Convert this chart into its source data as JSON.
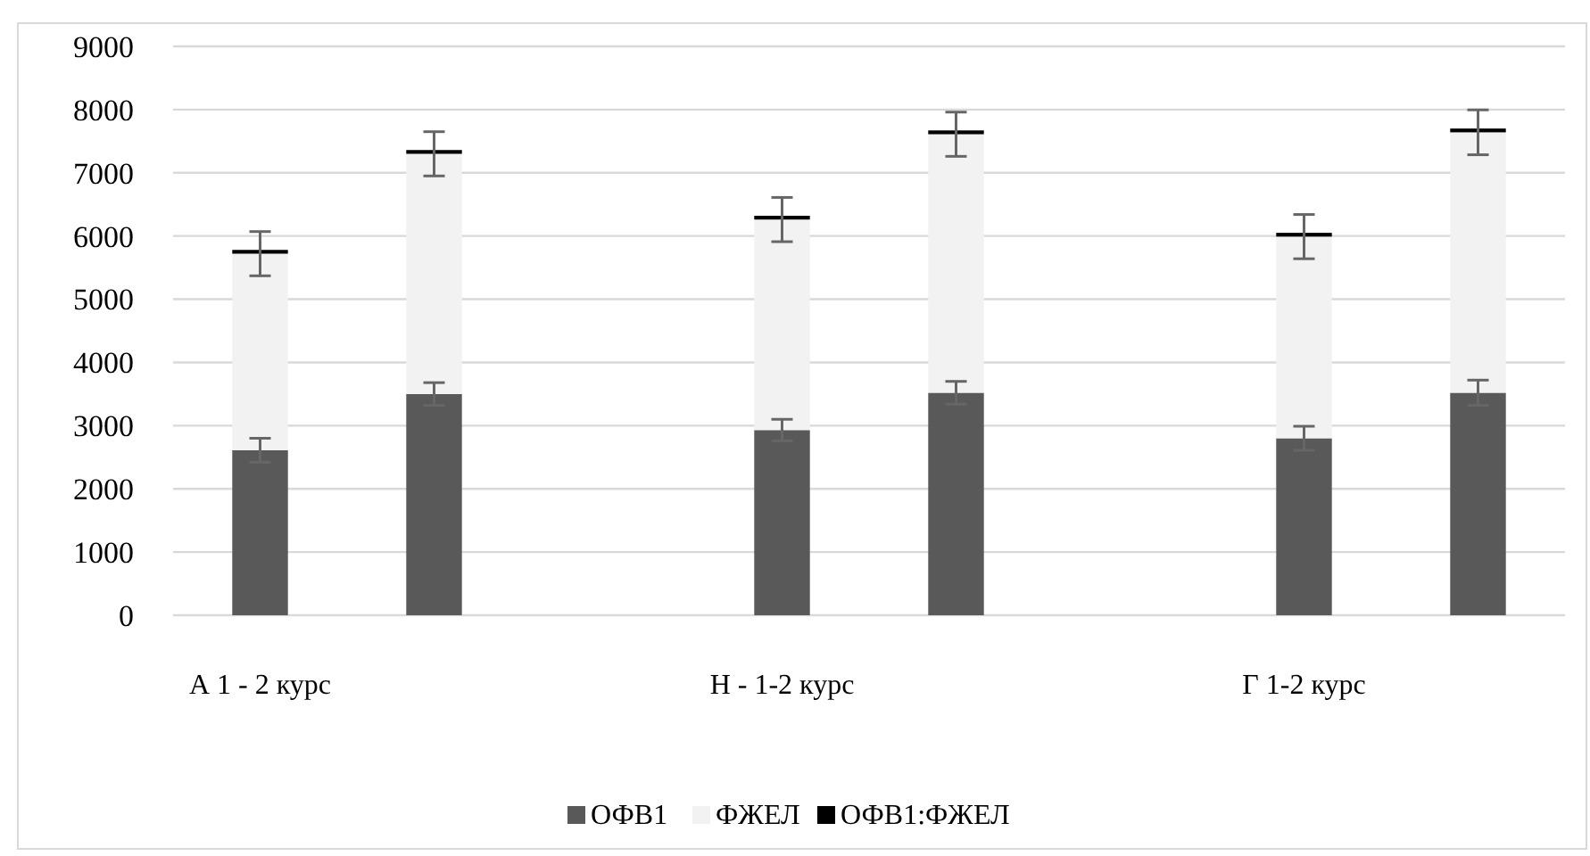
{
  "chart_data": {
    "type": "bar",
    "stacked": true,
    "categories": [
      "А 1 - 2 курс",
      null,
      null,
      "Н - 1-2 курс",
      null,
      null,
      "Г 1-2 курс",
      null
    ],
    "series": [
      {
        "name": "ОФВ1",
        "color": "#595959",
        "values": [
          2610,
          3500,
          null,
          2930,
          3520,
          null,
          2800,
          3520
        ],
        "errors": [
          190,
          180,
          null,
          170,
          180,
          null,
          190,
          200
        ]
      },
      {
        "name": "ФЖЕЛ",
        "color": "#f2f2f2",
        "values": [
          3110,
          3800,
          null,
          3330,
          4090,
          null,
          3190,
          4120
        ],
        "errors": [
          350,
          350,
          null,
          350,
          350,
          null,
          350,
          355
        ]
      },
      {
        "name": "ОФВ1:ФЖЕЛ",
        "color": "#000000",
        "values": [
          60,
          60,
          null,
          60,
          60,
          null,
          60,
          60
        ]
      }
    ],
    "ylim": [
      0,
      9000
    ],
    "yticks": [
      0,
      1000,
      2000,
      3000,
      4000,
      5000,
      6000,
      7000,
      8000,
      9000
    ],
    "grid": "y",
    "legend": "bottom"
  }
}
